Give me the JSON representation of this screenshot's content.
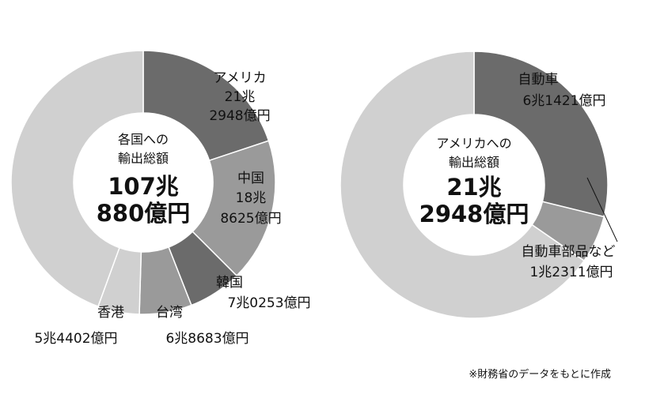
{
  "colors": {
    "dark": "#6b6b6b",
    "medium": "#9a9a9a",
    "light": "#d0d0d0",
    "hole": "#ffffff",
    "text": "#111111"
  },
  "chart_data": [
    {
      "type": "pie",
      "center_line1": "各国への",
      "center_line2": "輸出総額",
      "center_big1": "107兆",
      "center_big2": "880億円",
      "unit": "億円",
      "slices": [
        {
          "name": "アメリカ",
          "amount_lines": [
            "21兆",
            "2948億円"
          ],
          "value": 212948,
          "color": "dark"
        },
        {
          "name": "中国",
          "amount_lines": [
            "18兆",
            "8625億円"
          ],
          "value": 188625,
          "color": "medium"
        },
        {
          "name": "韓国",
          "amount_lines": [
            "7兆0253億円"
          ],
          "value": 70253,
          "color": "dark"
        },
        {
          "name": "台湾",
          "amount_lines": [
            "6兆8683億円"
          ],
          "value": 68683,
          "color": "medium"
        },
        {
          "name": "香港",
          "amount_lines": [
            "5兆4402億円"
          ],
          "value": 54402,
          "color": "light"
        },
        {
          "name": "",
          "amount_lines": [],
          "value": 475969,
          "color": "light"
        }
      ]
    },
    {
      "type": "pie",
      "center_line1": "アメリカへの",
      "center_line2": "輸出総額",
      "center_big1": "21兆",
      "center_big2": "2948億円",
      "unit": "億円",
      "slices": [
        {
          "name": "自動車",
          "amount_lines": [
            "6兆1421億円"
          ],
          "value": 61421,
          "color": "dark"
        },
        {
          "name": "自動車部品など",
          "amount_lines": [
            "1兆2311億円"
          ],
          "value": 12311,
          "color": "medium"
        },
        {
          "name": "",
          "amount_lines": [],
          "value": 139216,
          "color": "light"
        }
      ]
    }
  ],
  "source_note": "※財務省のデータをもとに作成"
}
